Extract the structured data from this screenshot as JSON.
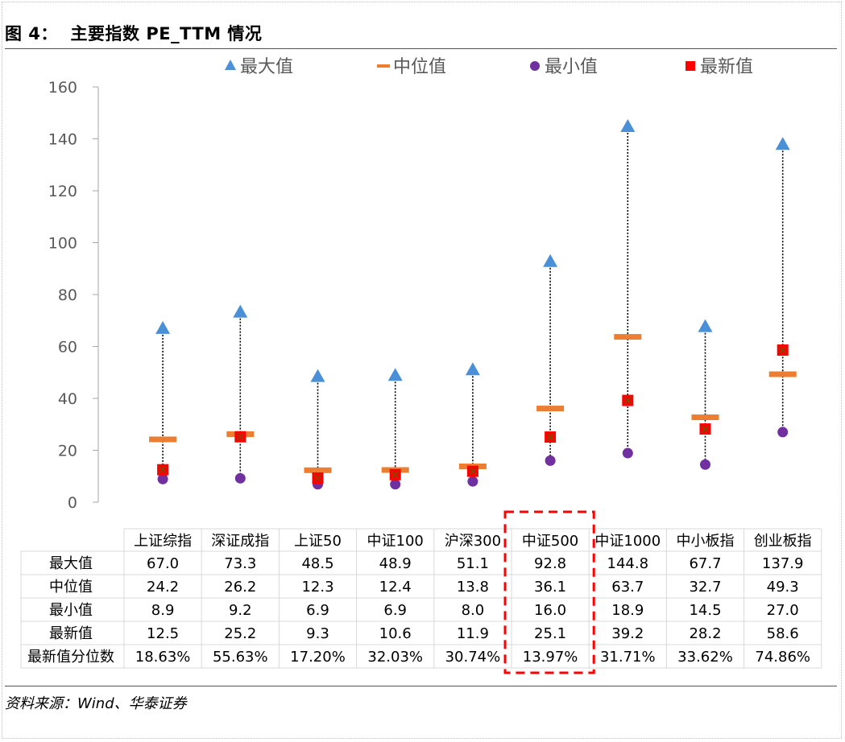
{
  "title": "图 4：  主要指数 PE_TTM 情况",
  "source": "资料来源：Wind、华泰证券",
  "legend": [
    {
      "label": "最大值",
      "marker": "triangle",
      "color": "#4A90D9"
    },
    {
      "label": "中位值",
      "marker": "dash",
      "color": "#ED7D31"
    },
    {
      "label": "最小值",
      "marker": "circle",
      "color": "#7030A0"
    },
    {
      "label": "最新值",
      "marker": "square-x",
      "color": "#FF0000"
    }
  ],
  "chart_data": {
    "type": "table",
    "chart_kind": "range-dot (high-low with median and latest)",
    "categories": [
      "上证综指",
      "深证成指",
      "上证50",
      "中证100",
      "沪深300",
      "中证500",
      "中证1000",
      "中小板指",
      "创业板指"
    ],
    "series": [
      {
        "name": "最大值",
        "values": [
          67.0,
          73.3,
          48.5,
          48.9,
          51.1,
          92.8,
          144.8,
          67.7,
          137.9
        ]
      },
      {
        "name": "中位值",
        "values": [
          24.2,
          26.2,
          12.3,
          12.4,
          13.8,
          36.1,
          63.7,
          32.7,
          49.3
        ]
      },
      {
        "name": "最小值",
        "values": [
          8.9,
          9.2,
          6.9,
          6.9,
          8.0,
          16.0,
          18.9,
          14.5,
          27.0
        ]
      },
      {
        "name": "最新值",
        "values": [
          12.5,
          25.2,
          9.3,
          10.6,
          11.9,
          25.1,
          39.2,
          28.2,
          58.6
        ]
      }
    ],
    "table": {
      "row_labels": [
        "最大值",
        "中位值",
        "最小值",
        "最新值",
        "最新值分位数"
      ],
      "rows": [
        [
          "67.0",
          "73.3",
          "48.5",
          "48.9",
          "51.1",
          "92.8",
          "144.8",
          "67.7",
          "137.9"
        ],
        [
          "24.2",
          "26.2",
          "12.3",
          "12.4",
          "13.8",
          "36.1",
          "63.7",
          "32.7",
          "49.3"
        ],
        [
          "8.9",
          "9.2",
          "6.9",
          "6.9",
          "8.0",
          "16.0",
          "18.9",
          "14.5",
          "27.0"
        ],
        [
          "12.5",
          "25.2",
          "9.3",
          "10.6",
          "11.9",
          "25.1",
          "39.2",
          "28.2",
          "58.6"
        ],
        [
          "18.63%",
          "55.63%",
          "17.20%",
          "32.03%",
          "30.74%",
          "13.97%",
          "31.71%",
          "33.62%",
          "74.86%"
        ]
      ]
    },
    "yticks": [
      "0",
      "20",
      "40",
      "60",
      "80",
      "100",
      "120",
      "140",
      "160"
    ],
    "ylim": [
      0,
      160
    ],
    "highlight_column": "中证500",
    "highlight_color": "#FF0000",
    "grid": false
  }
}
